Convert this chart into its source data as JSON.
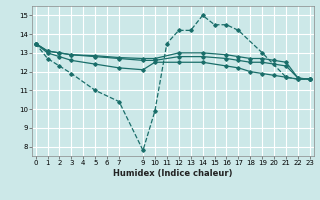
{
  "bg_color": "#cce8e8",
  "grid_color": "#ffffff",
  "line_color": "#1a6e6a",
  "xlabel": "Humidex (Indice chaleur)",
  "ylim": [
    7.5,
    15.5
  ],
  "xlim": [
    -0.3,
    23.3
  ],
  "yticks": [
    8,
    9,
    10,
    11,
    12,
    13,
    14,
    15
  ],
  "xticks": [
    0,
    1,
    2,
    3,
    4,
    5,
    6,
    7,
    9,
    10,
    11,
    12,
    13,
    14,
    15,
    16,
    17,
    18,
    19,
    20,
    21,
    22,
    23
  ],
  "series": [
    {
      "x": [
        0,
        1,
        2,
        3,
        5,
        7,
        9,
        10,
        11,
        12,
        13,
        14,
        15,
        16,
        17,
        19,
        21,
        22,
        23
      ],
      "y": [
        13.5,
        12.7,
        12.3,
        11.9,
        11.0,
        10.4,
        7.8,
        9.9,
        13.5,
        14.2,
        14.2,
        15.0,
        14.5,
        14.5,
        14.2,
        13.0,
        11.7,
        11.6,
        11.6
      ],
      "marker": "D",
      "markersize": 1.8,
      "linewidth": 0.9,
      "linestyle": "--"
    },
    {
      "x": [
        0,
        1,
        2,
        3,
        5,
        7,
        9,
        10,
        12,
        14,
        16,
        17,
        18,
        19,
        20,
        21,
        22,
        23
      ],
      "y": [
        13.5,
        13.1,
        13.0,
        12.9,
        12.8,
        12.7,
        12.6,
        12.6,
        12.8,
        12.8,
        12.7,
        12.6,
        12.5,
        12.5,
        12.4,
        12.3,
        11.65,
        11.6
      ],
      "marker": "D",
      "markersize": 1.8,
      "linewidth": 0.9,
      "linestyle": "-"
    },
    {
      "x": [
        0,
        1,
        2,
        3,
        5,
        7,
        9,
        10,
        12,
        14,
        16,
        17,
        18,
        19,
        20,
        21,
        22,
        23
      ],
      "y": [
        13.5,
        13.1,
        13.0,
        12.9,
        12.85,
        12.75,
        12.7,
        12.7,
        13.0,
        13.0,
        12.9,
        12.8,
        12.7,
        12.7,
        12.6,
        12.5,
        11.65,
        11.6
      ],
      "marker": "D",
      "markersize": 1.8,
      "linewidth": 0.9,
      "linestyle": "-"
    },
    {
      "x": [
        0,
        1,
        2,
        3,
        5,
        7,
        9,
        10,
        12,
        14,
        16,
        17,
        18,
        19,
        20,
        21,
        22,
        23
      ],
      "y": [
        13.5,
        13.0,
        12.8,
        12.6,
        12.4,
        12.2,
        12.1,
        12.5,
        12.5,
        12.5,
        12.3,
        12.2,
        12.0,
        11.9,
        11.8,
        11.7,
        11.6,
        11.6
      ],
      "marker": "D",
      "markersize": 1.8,
      "linewidth": 0.9,
      "linestyle": "-"
    }
  ]
}
